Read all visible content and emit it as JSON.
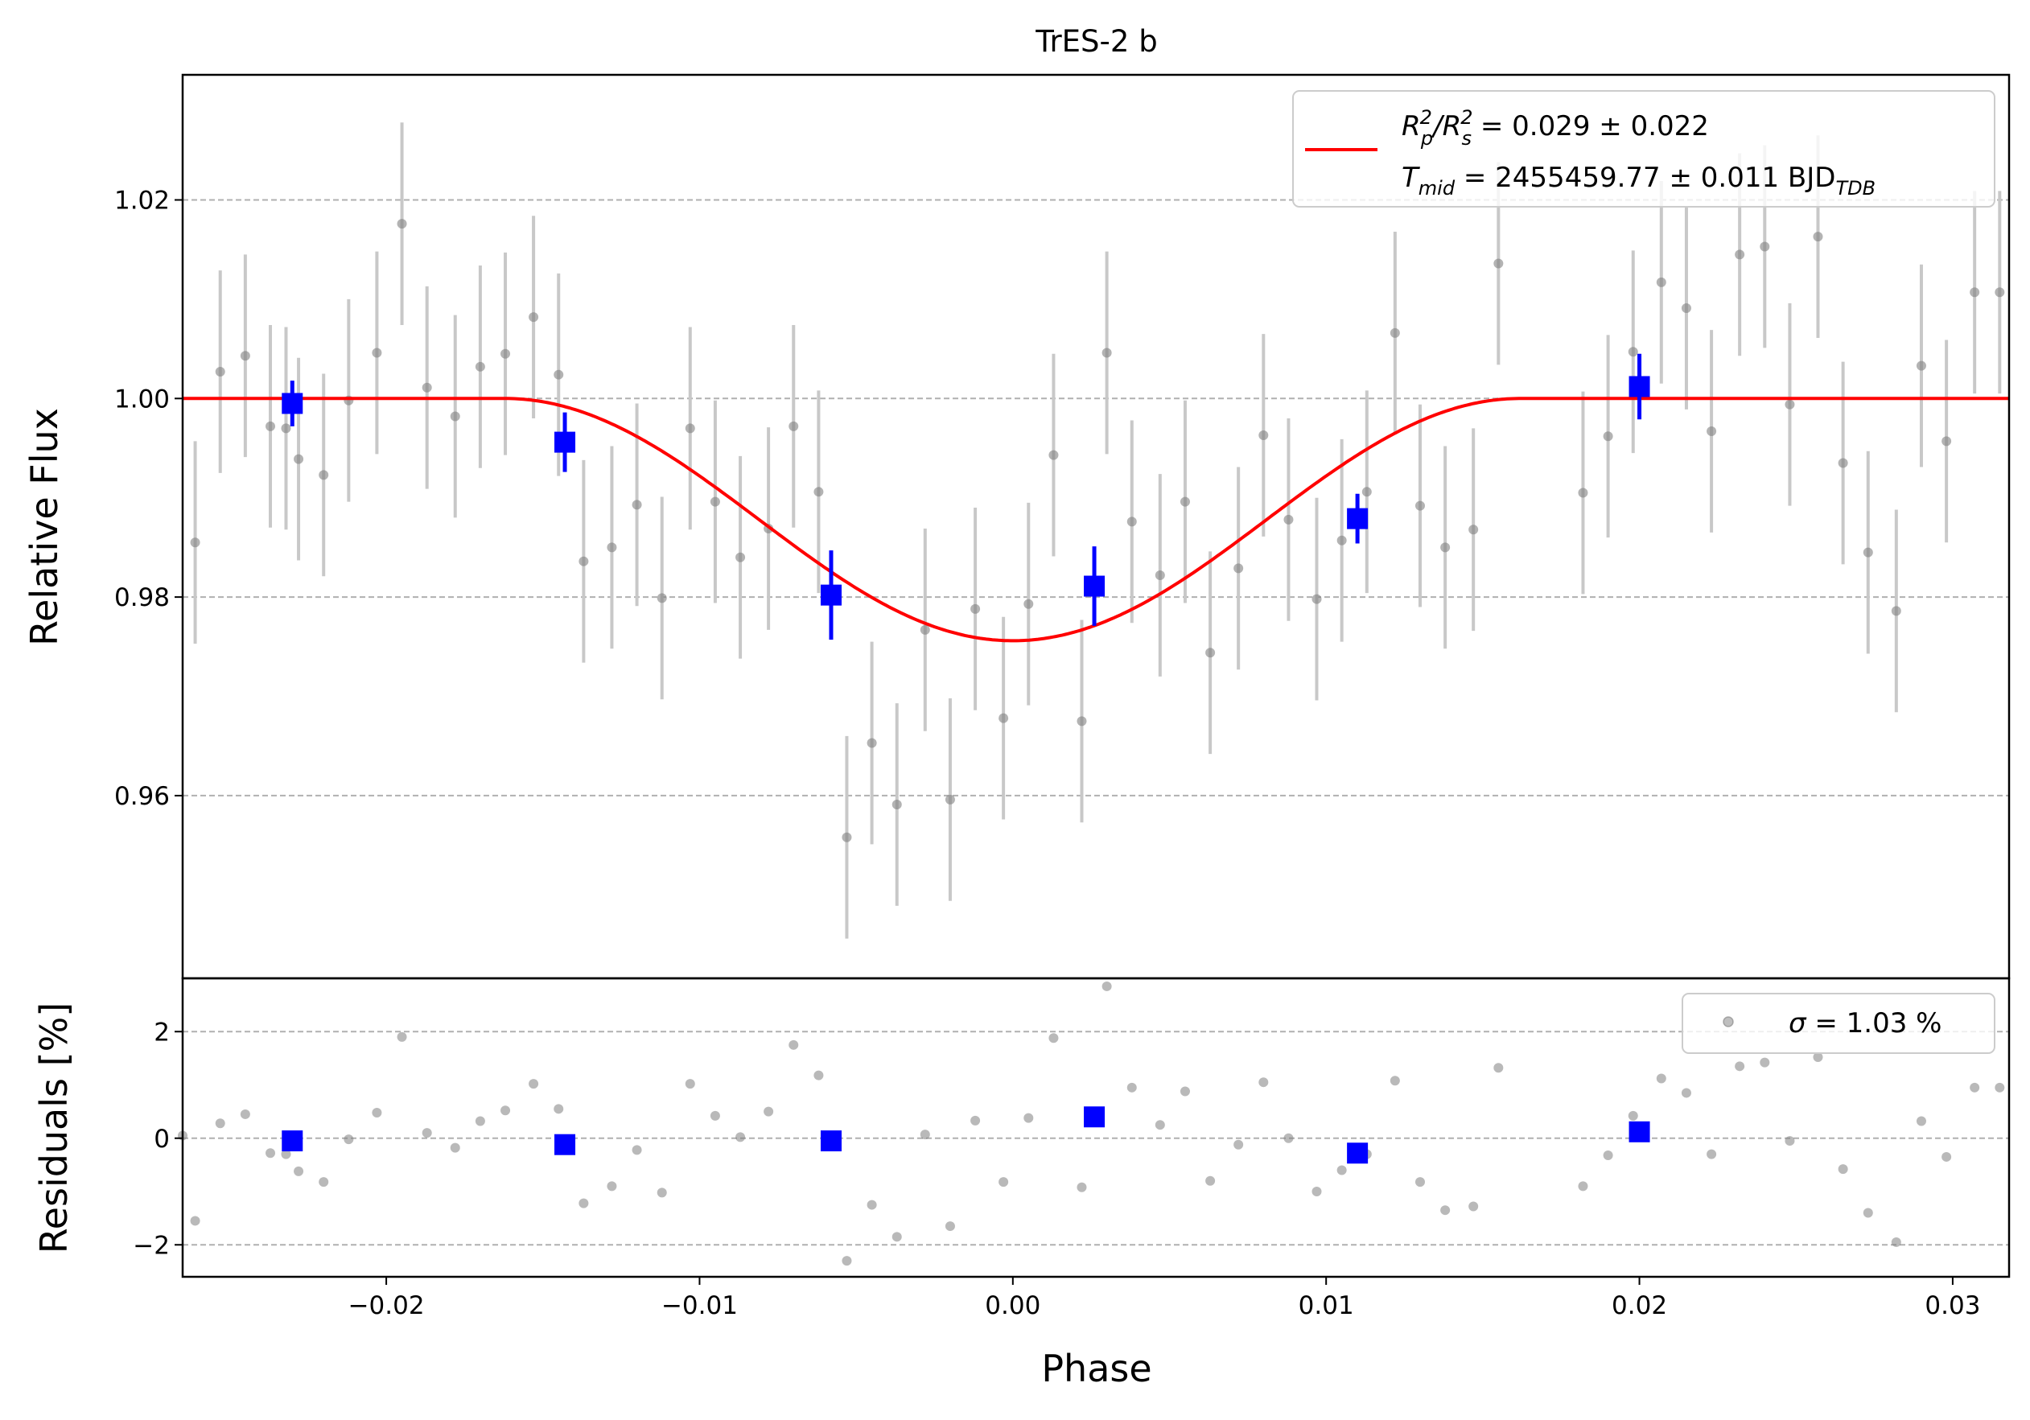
{
  "chart_data": [
    {
      "type": "scatter",
      "panel": "main",
      "title": "TrES-2 b",
      "xlabel": "",
      "ylabel": "Relative Flux",
      "xlim": [
        -0.0265,
        0.0318
      ],
      "ylim": [
        0.9416,
        1.0326
      ],
      "yticks": [
        0.96,
        0.98,
        1.0,
        1.02
      ],
      "ytick_labels": [
        "0.96",
        "0.98",
        "1.00",
        "1.02"
      ],
      "grid": "horizontal dashed",
      "legend_placement": "top-right",
      "legend": {
        "line_1": {
          "pre": "R",
          "sub1": "p",
          "sup1": "2",
          "mid": "/R",
          "sub2": "s",
          "sup2": "2",
          "post": " = 0.029 ± 0.022"
        },
        "line_2": {
          "pre": "T",
          "sub1": "mid",
          "mid": " = 2455459.77 ± 0.011 BJD",
          "sub2": "TDB"
        }
      },
      "model": {
        "color": "#ff0000",
        "baseline": 1.0,
        "depth": 0.0244,
        "t1": -0.0162,
        "t4": 0.0162,
        "min_phase": 0.0
      },
      "raw_points": {
        "color": "#808080",
        "x": [
          -0.0261,
          -0.0253,
          -0.0245,
          -0.0237,
          -0.0232,
          -0.0228,
          -0.022,
          -0.0212,
          -0.0203,
          -0.0195,
          -0.0187,
          -0.0178,
          -0.017,
          -0.0162,
          -0.0153,
          -0.0145,
          -0.0137,
          -0.0128,
          -0.012,
          -0.0112,
          -0.0103,
          -0.0095,
          -0.0087,
          -0.0078,
          -0.007,
          -0.0062,
          -0.0053,
          -0.0045,
          -0.0037,
          -0.0028,
          -0.002,
          -0.0012,
          -0.0003,
          0.0005,
          0.0013,
          0.0022,
          0.003,
          0.0038,
          0.0047,
          0.0055,
          0.0063,
          0.0072,
          0.008,
          0.0088,
          0.0097,
          0.0105,
          0.0113,
          0.0122,
          0.013,
          0.0138,
          0.0147,
          0.0155,
          0.0182,
          0.019,
          0.0198,
          0.0207,
          0.0215,
          0.0223,
          0.0232,
          0.024,
          0.0248,
          0.0257,
          0.0265,
          0.0273,
          0.0282,
          0.029,
          0.0298,
          0.0307,
          0.0315
        ],
        "y": [
          0.9855,
          1.0027,
          1.0043,
          0.9972,
          0.997,
          0.9939,
          0.9923,
          0.9998,
          1.0046,
          1.0176,
          1.0011,
          0.9982,
          1.0032,
          1.0045,
          1.0082,
          1.0024,
          0.9836,
          0.985,
          0.9893,
          0.9799,
          0.997,
          0.9896,
          0.984,
          0.9869,
          0.9972,
          0.9906,
          0.9558,
          0.9653,
          0.9591,
          0.9767,
          0.9596,
          0.9788,
          0.9678,
          0.9793,
          0.9943,
          0.9675,
          1.0046,
          0.9876,
          0.9822,
          0.9896,
          0.9744,
          0.9829,
          0.9963,
          0.9878,
          0.9798,
          0.9857,
          0.9906,
          1.0066,
          0.9892,
          0.985,
          0.9868,
          1.0136,
          0.9905,
          0.9962,
          1.0047,
          1.0117,
          1.0091,
          0.9967,
          1.0145,
          1.0153,
          0.9994,
          1.0163,
          0.9935,
          0.9845,
          0.9786,
          1.0033,
          0.9957,
          1.0107,
          1.0107
        ],
        "yerr": 0.0102
      },
      "binned_points": {
        "color": "#0000ff",
        "x": [
          -0.023,
          -0.0143,
          -0.0058,
          0.0026,
          0.011,
          0.02
        ],
        "y": [
          0.9995,
          0.9956,
          0.9802,
          0.9811,
          0.9879,
          1.0012
        ],
        "yerr": [
          0.0023,
          0.003,
          0.0045,
          0.004,
          0.0025,
          0.0033
        ]
      }
    },
    {
      "type": "scatter",
      "panel": "residuals",
      "xlabel": "Phase",
      "ylabel": "Residuals [%]",
      "xlim": [
        -0.0265,
        0.0318
      ],
      "ylim": [
        -2.6,
        3.0
      ],
      "yticks": [
        -2,
        0,
        2
      ],
      "ytick_labels": [
        "−2",
        "0",
        "2"
      ],
      "xticks": [
        -0.02,
        -0.01,
        0.0,
        0.01,
        0.02,
        0.03
      ],
      "xtick_labels": [
        "−0.02",
        "−0.01",
        "0.00",
        "0.01",
        "0.02",
        "0.03"
      ],
      "grid": "horizontal dashed",
      "legend_placement": "top-right",
      "legend": {
        "sigma": "σ",
        "text": " = 1.03 %"
      },
      "raw_points": {
        "color": "#808080",
        "x": [
          -0.0265,
          -0.0261,
          -0.0253,
          -0.0245,
          -0.0237,
          -0.0232,
          -0.0228,
          -0.022,
          -0.0212,
          -0.0203,
          -0.0195,
          -0.0187,
          -0.0178,
          -0.017,
          -0.0162,
          -0.0153,
          -0.0145,
          -0.0137,
          -0.0128,
          -0.012,
          -0.0112,
          -0.0103,
          -0.0095,
          -0.0087,
          -0.0078,
          -0.007,
          -0.0062,
          -0.0053,
          -0.0045,
          -0.0037,
          -0.0028,
          -0.002,
          -0.0012,
          -0.0003,
          0.0005,
          0.0013,
          0.0022,
          0.003,
          0.0038,
          0.0047,
          0.0055,
          0.0063,
          0.0072,
          0.008,
          0.0088,
          0.0097,
          0.0105,
          0.0113,
          0.0122,
          0.013,
          0.0138,
          0.0147,
          0.0155,
          0.0182,
          0.019,
          0.0198,
          0.0207,
          0.0215,
          0.0223,
          0.0232,
          0.024,
          0.0248,
          0.0257,
          0.0265,
          0.0273,
          0.0282,
          0.029,
          0.0298,
          0.0307,
          0.0315
        ],
        "y": [
          0.05,
          -1.55,
          0.28,
          0.45,
          -0.28,
          -0.3,
          -0.62,
          -0.82,
          -0.02,
          0.48,
          1.9,
          0.1,
          -0.18,
          0.32,
          0.52,
          1.02,
          0.55,
          -1.22,
          -0.9,
          -0.22,
          -1.02,
          1.02,
          0.42,
          0.02,
          0.5,
          1.75,
          1.18,
          -2.3,
          -1.25,
          -1.85,
          0.07,
          -1.65,
          0.33,
          -0.82,
          0.38,
          1.88,
          -0.92,
          2.85,
          0.95,
          0.25,
          0.88,
          -0.8,
          -0.12,
          1.05,
          0.0,
          -1.0,
          -0.6,
          -0.3,
          1.08,
          -0.82,
          -1.35,
          -1.28,
          1.32,
          -0.9,
          -0.32,
          0.42,
          1.12,
          0.85,
          -0.3,
          1.35,
          1.42,
          -0.05,
          1.52,
          -0.58,
          -1.4,
          -1.95,
          0.32,
          -0.35,
          0.95,
          0.95
        ],
        "yerr": 0
      },
      "binned_points": {
        "color": "#0000ff",
        "x": [
          -0.023,
          -0.0143,
          -0.0058,
          0.0026,
          0.011,
          0.02
        ],
        "y": [
          -0.05,
          -0.12,
          -0.05,
          0.4,
          -0.28,
          0.12
        ],
        "yerr": [
          0,
          0,
          0,
          0,
          0,
          0
        ]
      }
    }
  ]
}
